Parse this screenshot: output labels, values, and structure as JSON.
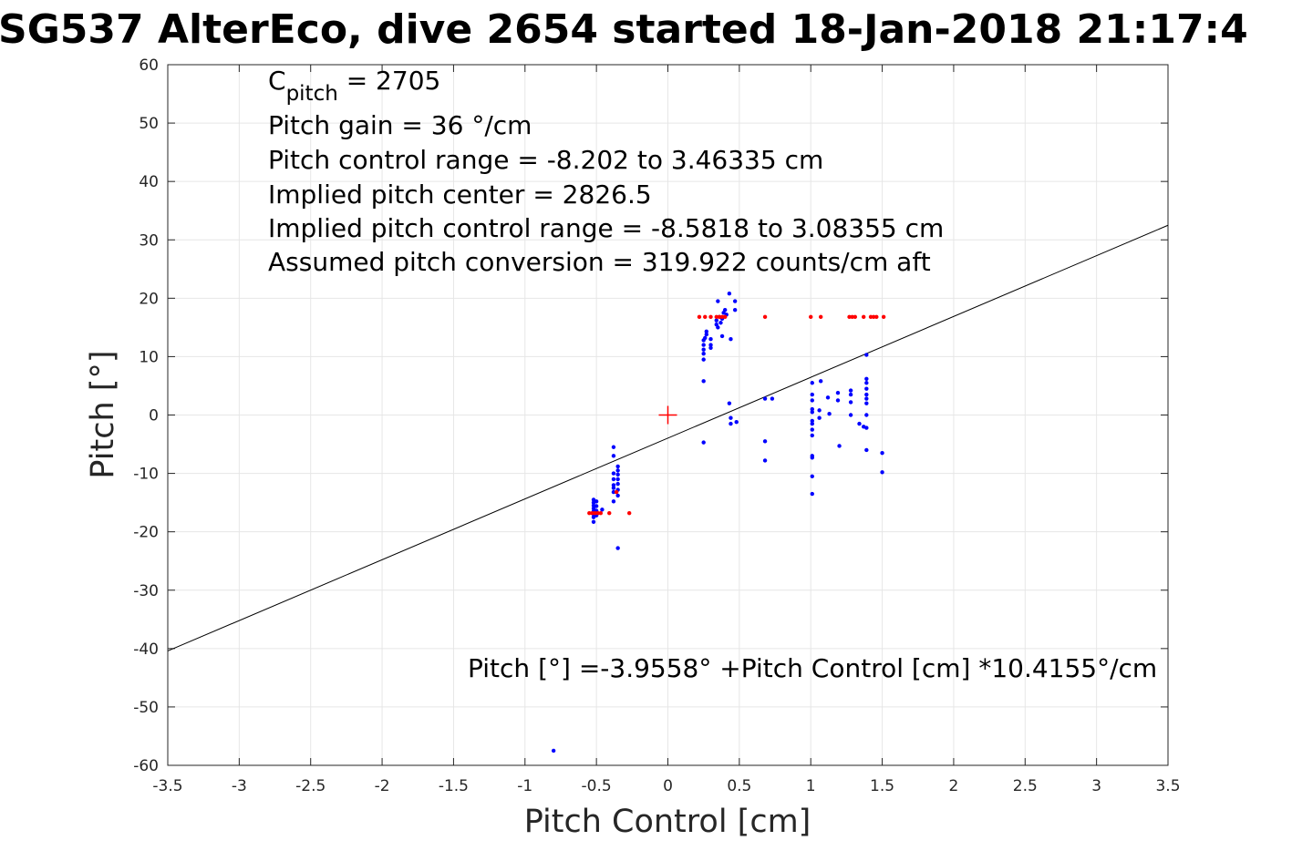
{
  "chart_data": {
    "type": "scatter",
    "title": "SG537 AlterEco, dive 2654 started 18-Jan-2018 21:17:4",
    "xlabel": "Pitch Control [cm]",
    "ylabel": "Pitch [°]",
    "xlim": [
      -3.5,
      3.5
    ],
    "ylim": [
      -60,
      60
    ],
    "x_ticks": [
      -3.5,
      -3,
      -2.5,
      -2,
      -1.5,
      -1,
      -0.5,
      0,
      0.5,
      1,
      1.5,
      2,
      2.5,
      3,
      3.5
    ],
    "x_tick_labels": [
      "-3.5",
      "-3",
      "-2.5",
      "-2",
      "-1.5",
      "-1",
      "-0.5",
      "0",
      "0.5",
      "1",
      "1.5",
      "2",
      "2.5",
      "3",
      "3.5"
    ],
    "y_ticks": [
      60,
      50,
      40,
      30,
      20,
      10,
      0,
      -10,
      -20,
      -30,
      -40,
      -50,
      -60
    ],
    "y_tick_labels": [
      "60",
      "50",
      "40",
      "30",
      "20",
      "10",
      "0",
      "-10",
      "-20",
      "-30",
      "-40",
      "-50",
      "-60"
    ],
    "grid": true,
    "annotations": {
      "c_pitch_main": "C",
      "c_pitch_sub": "pitch",
      "c_pitch_rest": " = 2705",
      "gain": "Pitch gain = 36 °/cm",
      "control_range": "Pitch control range = -8.202 to 3.46335 cm",
      "implied_center": "Implied pitch center = 2826.5",
      "implied_range": "Implied pitch control range = -8.5818 to 3.08355 cm",
      "conversion": "Assumed pitch conversion = 319.922 counts/cm aft",
      "fit_equation": "Pitch [°] =-3.9558° +Pitch Control [cm] *10.4155°/cm"
    },
    "fit_line": {
      "intercept": -3.9558,
      "slope": 10.4155,
      "color": "#000000"
    },
    "center_marker": {
      "x": 0,
      "y": 0,
      "color": "#ff0000"
    },
    "series": [
      {
        "color": "#0000ff",
        "points": [
          [
            -0.8,
            -57.5
          ],
          [
            -0.52,
            -14.5
          ],
          [
            -0.52,
            -15.0
          ],
          [
            -0.52,
            -15.5
          ],
          [
            -0.52,
            -16.0
          ],
          [
            -0.52,
            -16.5
          ],
          [
            -0.52,
            -17.0
          ],
          [
            -0.52,
            -17.5
          ],
          [
            -0.52,
            -18.3
          ],
          [
            -0.5,
            -14.8
          ],
          [
            -0.5,
            -15.6
          ],
          [
            -0.5,
            -16.4
          ],
          [
            -0.5,
            -17.2
          ],
          [
            -0.46,
            -16.2
          ],
          [
            -0.38,
            -5.5
          ],
          [
            -0.38,
            -7.0
          ],
          [
            -0.38,
            -10.0
          ],
          [
            -0.38,
            -11.0
          ],
          [
            -0.38,
            -12.0
          ],
          [
            -0.38,
            -12.5
          ],
          [
            -0.38,
            -13.2
          ],
          [
            -0.38,
            -14.8
          ],
          [
            -0.35,
            -8.8
          ],
          [
            -0.35,
            -9.5
          ],
          [
            -0.35,
            -10.2
          ],
          [
            -0.35,
            -11.0
          ],
          [
            -0.35,
            -11.8
          ],
          [
            -0.35,
            -12.8
          ],
          [
            -0.35,
            -13.8
          ],
          [
            -0.35,
            -22.8
          ],
          [
            0.25,
            5.8
          ],
          [
            0.25,
            9.5
          ],
          [
            0.25,
            10.5
          ],
          [
            0.25,
            11.2
          ],
          [
            0.25,
            12.0
          ],
          [
            0.25,
            12.8
          ],
          [
            0.25,
            -4.7
          ],
          [
            0.26,
            13.2
          ],
          [
            0.27,
            13.8
          ],
          [
            0.27,
            14.3
          ],
          [
            0.3,
            11.5
          ],
          [
            0.3,
            12.0
          ],
          [
            0.3,
            13.0
          ],
          [
            0.34,
            15.5
          ],
          [
            0.34,
            16.2
          ],
          [
            0.35,
            19.5
          ],
          [
            0.35,
            15.0
          ],
          [
            0.36,
            16.8
          ],
          [
            0.37,
            15.8
          ],
          [
            0.38,
            13.5
          ],
          [
            0.38,
            16.5
          ],
          [
            0.39,
            17.5
          ],
          [
            0.4,
            18.0
          ],
          [
            0.41,
            17.2
          ],
          [
            0.43,
            20.8
          ],
          [
            0.43,
            2.0
          ],
          [
            0.44,
            -0.5
          ],
          [
            0.44,
            -1.5
          ],
          [
            0.44,
            13.0
          ],
          [
            0.47,
            19.5
          ],
          [
            0.47,
            18.0
          ],
          [
            0.48,
            -1.2
          ],
          [
            0.68,
            2.8
          ],
          [
            0.68,
            -4.5
          ],
          [
            0.68,
            -7.8
          ],
          [
            0.73,
            2.8
          ],
          [
            1.01,
            5.5
          ],
          [
            1.01,
            3.5
          ],
          [
            1.01,
            2.5
          ],
          [
            1.01,
            1.0
          ],
          [
            1.01,
            0.5
          ],
          [
            1.01,
            -1.0
          ],
          [
            1.01,
            -1.5
          ],
          [
            1.01,
            -2.5
          ],
          [
            1.01,
            -3.5
          ],
          [
            1.01,
            -7.0
          ],
          [
            1.01,
            -7.3
          ],
          [
            1.01,
            -10.5
          ],
          [
            1.01,
            -13.5
          ],
          [
            1.06,
            0.8
          ],
          [
            1.06,
            -0.5
          ],
          [
            1.07,
            5.8
          ],
          [
            1.12,
            3.0
          ],
          [
            1.13,
            0.2
          ],
          [
            1.19,
            3.8
          ],
          [
            1.19,
            2.5
          ],
          [
            1.2,
            -5.3
          ],
          [
            1.28,
            4.2
          ],
          [
            1.28,
            3.5
          ],
          [
            1.28,
            2.2
          ],
          [
            1.28,
            0.0
          ],
          [
            1.34,
            -1.5
          ],
          [
            1.37,
            -2.0
          ],
          [
            1.39,
            10.3
          ],
          [
            1.39,
            6.2
          ],
          [
            1.39,
            5.5
          ],
          [
            1.39,
            4.5
          ],
          [
            1.39,
            3.5
          ],
          [
            1.39,
            2.8
          ],
          [
            1.39,
            2.0
          ],
          [
            1.39,
            0.0
          ],
          [
            1.39,
            -2.2
          ],
          [
            1.39,
            -6.0
          ],
          [
            1.5,
            -6.5
          ],
          [
            1.5,
            -9.8
          ]
        ]
      },
      {
        "color": "#ff0000",
        "points": [
          [
            -0.55,
            -16.8
          ],
          [
            -0.53,
            -16.8
          ],
          [
            -0.51,
            -16.8
          ],
          [
            -0.49,
            -16.8
          ],
          [
            -0.47,
            -16.8
          ],
          [
            -0.41,
            -16.8
          ],
          [
            -0.27,
            -16.8
          ],
          [
            -0.36,
            -13.2
          ],
          [
            0.22,
            16.8
          ],
          [
            0.26,
            16.8
          ],
          [
            0.3,
            16.8
          ],
          [
            0.34,
            16.8
          ],
          [
            0.36,
            16.8
          ],
          [
            0.38,
            16.8
          ],
          [
            0.4,
            16.8
          ],
          [
            0.68,
            16.8
          ],
          [
            1.0,
            16.8
          ],
          [
            1.07,
            16.8
          ],
          [
            1.27,
            16.8
          ],
          [
            1.29,
            16.8
          ],
          [
            1.31,
            16.8
          ],
          [
            1.37,
            16.8
          ],
          [
            1.42,
            16.8
          ],
          [
            1.44,
            16.8
          ],
          [
            1.46,
            16.8
          ],
          [
            1.51,
            16.8
          ]
        ]
      }
    ]
  }
}
